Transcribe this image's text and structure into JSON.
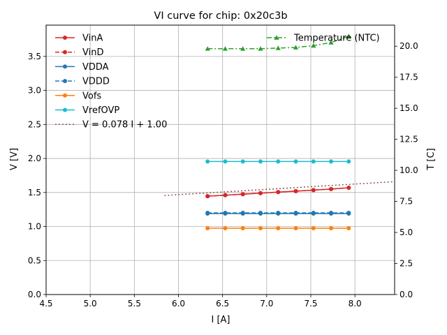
{
  "chart_data": {
    "type": "line",
    "title": "VI curve for chip: 0x20c3b",
    "xlabel": "I [A]",
    "ylabel": "V [V]",
    "y2label": "T [C]",
    "xlim": [
      4.5,
      8.45
    ],
    "ylim": [
      0,
      3.96
    ],
    "y2lim": [
      0,
      21.7
    ],
    "xticks": [
      "4.5",
      "5.0",
      "5.5",
      "6.0",
      "6.5",
      "7.0",
      "7.5",
      "8.0"
    ],
    "xtick_values": [
      4.5,
      5.0,
      5.5,
      6.0,
      6.5,
      7.0,
      7.5,
      8.0
    ],
    "yticks": [
      "0.0",
      "0.5",
      "1.0",
      "1.5",
      "2.0",
      "2.5",
      "3.0",
      "3.5"
    ],
    "ytick_values": [
      0,
      0.5,
      1.0,
      1.5,
      2.0,
      2.5,
      3.0,
      3.5
    ],
    "y2ticks": [
      "0.0",
      "2.5",
      "5.0",
      "7.5",
      "10.0",
      "12.5",
      "15.0",
      "17.5",
      "20.0"
    ],
    "y2tick_values": [
      0,
      2.5,
      5.0,
      7.5,
      10.0,
      12.5,
      15.0,
      17.5,
      20.0
    ],
    "grid": true,
    "legend_placement": "top-left",
    "legend2_placement": "top-right",
    "x": [
      6.33,
      6.53,
      6.73,
      6.93,
      7.13,
      7.33,
      7.53,
      7.73,
      7.93
    ],
    "series": [
      {
        "name": "VinA",
        "axis": "left",
        "color": "#d62728",
        "dash": "solid",
        "marker": "circle",
        "values": [
          1.445,
          1.46,
          1.475,
          1.49,
          1.505,
          1.52,
          1.535,
          1.55,
          1.57
        ]
      },
      {
        "name": "VinD",
        "axis": "left",
        "color": "#d62728",
        "dash": "dashed",
        "marker": "circle",
        "values": [
          1.445,
          1.46,
          1.475,
          1.49,
          1.505,
          1.52,
          1.535,
          1.55,
          1.57
        ]
      },
      {
        "name": "VDDA",
        "axis": "left",
        "color": "#1f77b4",
        "dash": "solid",
        "marker": "circle",
        "values": [
          1.19,
          1.19,
          1.19,
          1.19,
          1.19,
          1.19,
          1.19,
          1.19,
          1.19
        ]
      },
      {
        "name": "VDDD",
        "axis": "left",
        "color": "#1f77b4",
        "dash": "dashed",
        "marker": "circle",
        "values": [
          1.2,
          1.2,
          1.2,
          1.2,
          1.2,
          1.2,
          1.2,
          1.2,
          1.2
        ]
      },
      {
        "name": "Vofs",
        "axis": "left",
        "color": "#ff7f0e",
        "dash": "solid",
        "marker": "circle",
        "values": [
          0.975,
          0.975,
          0.975,
          0.975,
          0.975,
          0.975,
          0.975,
          0.975,
          0.975
        ]
      },
      {
        "name": "VrefOVP",
        "axis": "left",
        "color": "#17becf",
        "dash": "solid",
        "marker": "circle",
        "values": [
          1.955,
          1.955,
          1.955,
          1.955,
          1.955,
          1.955,
          1.955,
          1.955,
          1.955
        ]
      },
      {
        "name": "Temperature (NTC)",
        "axis": "right",
        "color": "#2ca02c",
        "dash": "dashdot",
        "marker": "triangle",
        "values": [
          19.8,
          19.8,
          19.8,
          19.8,
          19.85,
          19.9,
          20.05,
          20.3,
          20.8
        ]
      }
    ],
    "fit": {
      "name": "V = 0.078 I + 1.00",
      "color": "#8c564b",
      "dash": "dotted",
      "slope": 0.078,
      "intercept": 1.0,
      "x_range": [
        5.84,
        8.45
      ]
    }
  }
}
